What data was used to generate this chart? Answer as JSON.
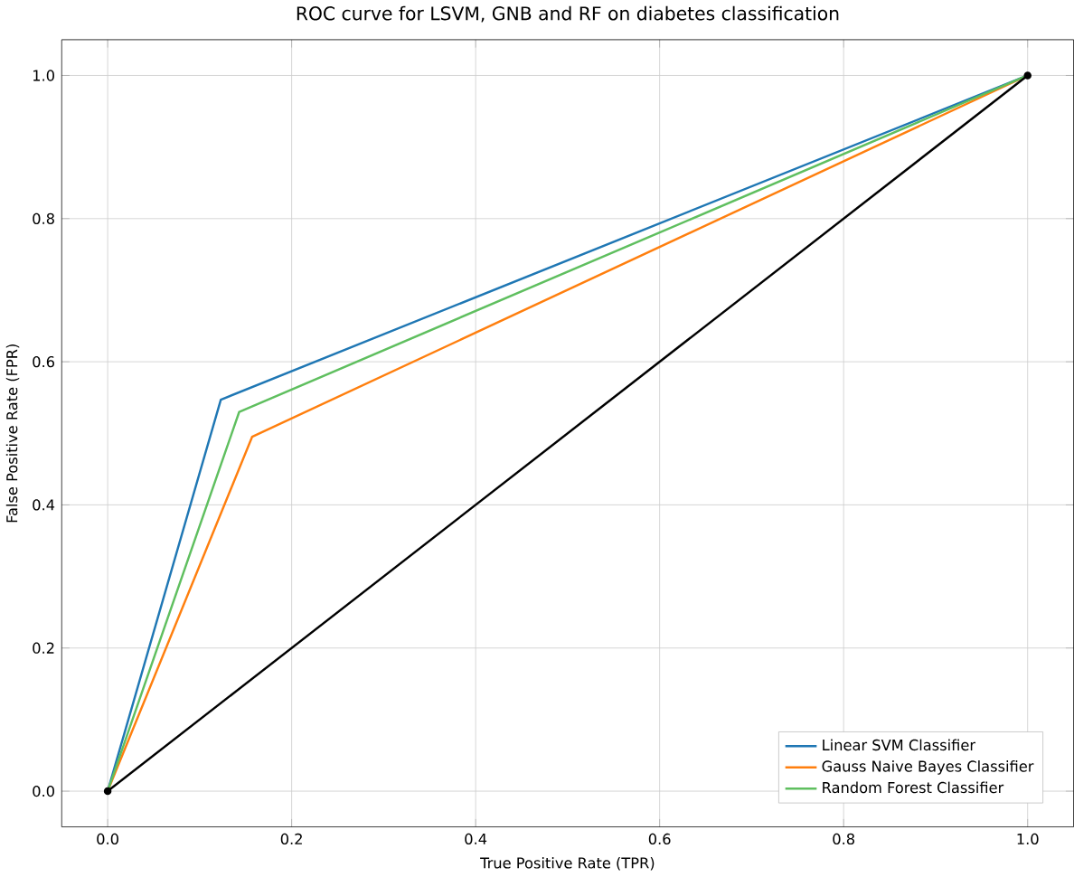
{
  "chart_data": {
    "type": "line",
    "title": "ROC curve for LSVM, GNB and RF on diabetes classification",
    "xlabel": "True Positive Rate (TPR)",
    "ylabel": "False Positive Rate (FPR)",
    "xlim": [
      -0.05,
      1.05
    ],
    "ylim": [
      -0.05,
      1.05
    ],
    "xticks": [
      {
        "value": 0,
        "label": "0.0"
      },
      0.2,
      0.4,
      0.6,
      0.8,
      {
        "value": 1,
        "label": "1.0"
      }
    ],
    "yticks": [
      {
        "value": 0,
        "label": "0.0"
      },
      0.2,
      0.4,
      0.6,
      0.8,
      {
        "value": 1,
        "label": "1.0"
      }
    ],
    "grid": true,
    "legend": "bottom right",
    "series": [
      {
        "name": "Linear SVM Classifier",
        "color": "#1f77b4",
        "x": [
          0,
          0.123,
          1
        ],
        "values": [
          0,
          0.547,
          1
        ]
      },
      {
        "name": "Gauss Naive Bayes Classifier",
        "color": "#ff7f0e",
        "x": [
          0,
          0.157,
          1
        ],
        "values": [
          0,
          0.495,
          1
        ]
      },
      {
        "name": "Random Forest Classifier",
        "color": "#5fbf5f",
        "x": [
          0,
          0.143,
          1
        ],
        "values": [
          0,
          0.53,
          1
        ]
      },
      {
        "color": "#000000",
        "x": [
          0,
          1
        ],
        "values": [
          0,
          1
        ],
        "marker": "circle"
      }
    ]
  }
}
